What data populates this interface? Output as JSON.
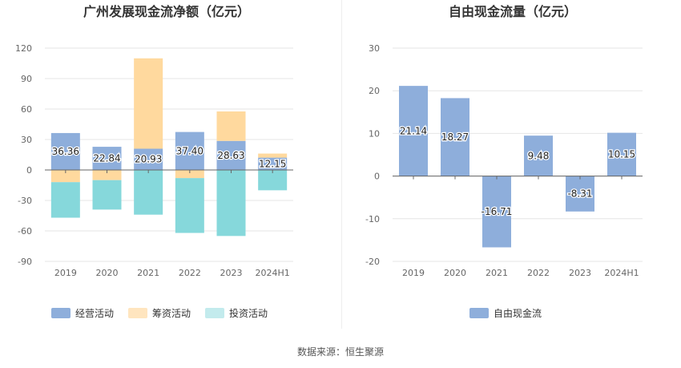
{
  "source_text": "数据来源：恒生聚源",
  "chart_data": [
    {
      "type": "bar",
      "title": "广州发展现金流净额（亿元）",
      "categories": [
        "2019",
        "2020",
        "2021",
        "2022",
        "2023",
        "2024H1"
      ],
      "ylim": [
        -90,
        120
      ],
      "yticks": [
        -90,
        -60,
        -30,
        0,
        30,
        60,
        90,
        120
      ],
      "grid": true,
      "legend_position": "bottom",
      "stacked": true,
      "series": [
        {
          "name": "经营活动",
          "color": "#8eaedb",
          "values": [
            36.36,
            22.84,
            20.93,
            37.4,
            28.63,
            12.15
          ],
          "labels": [
            "36.36",
            "22.84",
            "20.93",
            "37.40",
            "28.63",
            "12.15"
          ]
        },
        {
          "name": "筹资活动",
          "color": "#ffd99e",
          "values": [
            -12,
            -10,
            89,
            -8,
            29,
            4
          ]
        },
        {
          "name": "投资活动",
          "color": "#86d8db",
          "values": [
            -35,
            -29,
            -44,
            -54,
            -65,
            -20
          ]
        }
      ]
    },
    {
      "type": "bar",
      "title": "自由现金流量（亿元）",
      "categories": [
        "2019",
        "2020",
        "2021",
        "2022",
        "2023",
        "2024H1"
      ],
      "ylim": [
        -20,
        30
      ],
      "yticks": [
        -20,
        -10,
        0,
        10,
        20,
        30
      ],
      "grid": true,
      "legend_position": "bottom",
      "series": [
        {
          "name": "自由现金流",
          "color": "#8eaedb",
          "values": [
            21.14,
            18.27,
            -16.71,
            9.48,
            -8.31,
            10.15
          ],
          "labels": [
            "21.14",
            "18.27",
            "-16.71",
            "9.48",
            "-8.31",
            "10.15"
          ]
        }
      ]
    }
  ]
}
